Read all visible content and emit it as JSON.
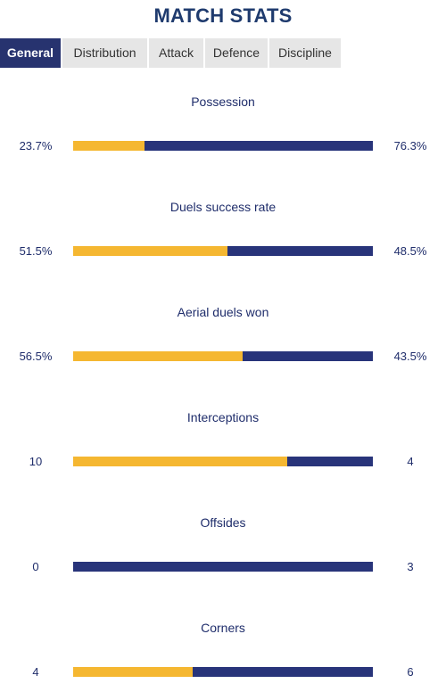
{
  "title": "MATCH STATS",
  "tabs": [
    {
      "label": "General",
      "active": true
    },
    {
      "label": "Distribution",
      "active": false
    },
    {
      "label": "Attack",
      "active": false
    },
    {
      "label": "Defence",
      "active": false
    },
    {
      "label": "Discipline",
      "active": false
    }
  ],
  "colors": {
    "home": "#f5b731",
    "away": "#28347a",
    "active_tab": "#27336f",
    "tab_bg": "#e6e6e6"
  },
  "stats": [
    {
      "label": "Possession",
      "left": "23.7%",
      "right": "76.3%",
      "home_share": 0.237
    },
    {
      "label": "Duels success rate",
      "left": "51.5%",
      "right": "48.5%",
      "home_share": 0.515
    },
    {
      "label": "Aerial duels won",
      "left": "56.5%",
      "right": "43.5%",
      "home_share": 0.565
    },
    {
      "label": "Interceptions",
      "left": "10",
      "right": "4",
      "home_share": 0.714
    },
    {
      "label": "Offsides",
      "left": "0",
      "right": "3",
      "home_share": 0.0
    },
    {
      "label": "Corners",
      "left": "4",
      "right": "6",
      "home_share": 0.4
    }
  ]
}
